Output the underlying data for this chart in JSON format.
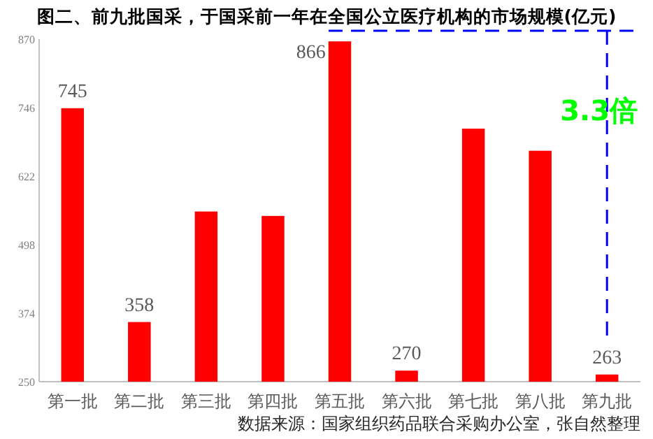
{
  "chart_data": {
    "type": "bar",
    "title": "图二、前九批国采，于国采前一年在全国公立医疗机构的市场规模(亿元)",
    "categories": [
      "第一批",
      "第二批",
      "第三批",
      "第四批",
      "第五批",
      "第六批",
      "第七批",
      "第八批",
      "第九批"
    ],
    "values": [
      745,
      358,
      558,
      550,
      866,
      270,
      708,
      668,
      263
    ],
    "value_labels": [
      "745",
      "358",
      null,
      null,
      "866",
      "270",
      null,
      null,
      "263"
    ],
    "color": "#ff0000",
    "ylim": [
      250,
      870
    ],
    "yticks": [
      250,
      374,
      498,
      622,
      746,
      870
    ],
    "ref_lines": [
      {
        "axis": "x",
        "value": "第九批",
        "color": "#0000ff",
        "line_style": "dashed"
      }
    ],
    "annotations": [
      "3.3倍",
      "数据来源：国家组织药品联合采购办公室，张自然整理"
    ]
  }
}
